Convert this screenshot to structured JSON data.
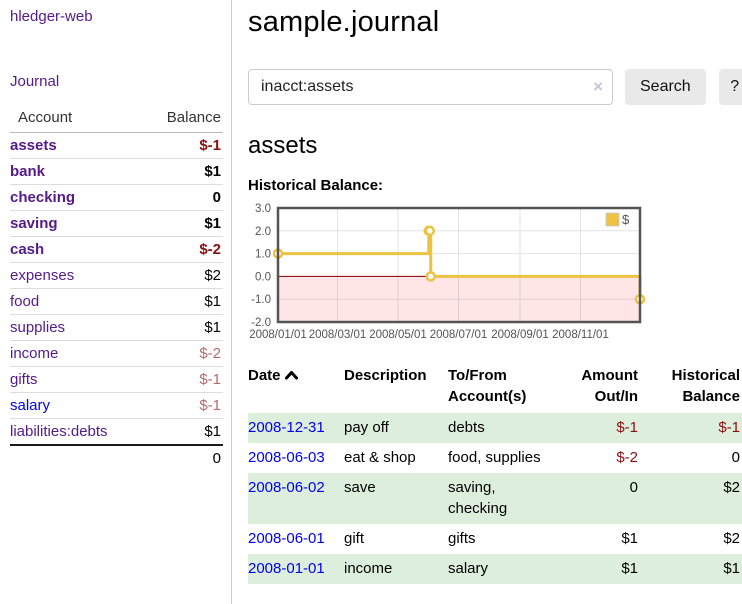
{
  "app": {
    "title": "hledger-web"
  },
  "sidebar": {
    "journal_link": "Journal",
    "accounts_table": {
      "col_account": "Account",
      "col_balance": "Balance",
      "rows": [
        {
          "name": "assets",
          "balance": "$-1"
        },
        {
          "name": "bank",
          "balance": "$1"
        },
        {
          "name": "checking",
          "balance": "0"
        },
        {
          "name": "saving",
          "balance": "$1"
        },
        {
          "name": "cash",
          "balance": "$-2"
        },
        {
          "name": "expenses",
          "balance": "$2"
        },
        {
          "name": "food",
          "balance": "$1"
        },
        {
          "name": "supplies",
          "balance": "$1"
        },
        {
          "name": "income",
          "balance": "$-2"
        },
        {
          "name": "gifts",
          "balance": "$-1"
        },
        {
          "name": "salary",
          "balance": "$-1"
        },
        {
          "name": "liabilities:debts",
          "balance": "$1"
        }
      ],
      "total": "0"
    }
  },
  "main": {
    "title": "sample.journal",
    "search": {
      "query": "inacct:assets",
      "clear_icon": "×",
      "button_label": "Search",
      "help_label": "?"
    },
    "account_heading": "assets",
    "chart_label": "Historical Balance:"
  },
  "chart_data": {
    "type": "line",
    "title": "Historical Balance",
    "steps": true,
    "series": [
      {
        "name": "$",
        "color": "#edc240",
        "points": [
          {
            "date": "2008-01-01",
            "day": 0,
            "value": 1
          },
          {
            "date": "2008-06-01",
            "day": 152,
            "value": 2
          },
          {
            "date": "2008-06-02",
            "day": 153,
            "value": 2
          },
          {
            "date": "2008-06-03",
            "day": 154,
            "value": 0
          },
          {
            "date": "2008-12-31",
            "day": 365,
            "value": -1
          }
        ]
      }
    ],
    "ylim": [
      -2,
      3
    ],
    "xlim_days": [
      0,
      365
    ],
    "y_ticks": [
      {
        "label": "3.0",
        "value": 3
      },
      {
        "label": "2.0",
        "value": 2
      },
      {
        "label": "1.0",
        "value": 1
      },
      {
        "label": "0.0",
        "value": 0
      },
      {
        "label": "-1.0",
        "value": -1
      },
      {
        "label": "-2.0",
        "value": -2
      }
    ],
    "x_ticks": [
      {
        "label": "2008/01/01",
        "day": 0
      },
      {
        "label": "2008/03/01",
        "day": 60
      },
      {
        "label": "2008/05/01",
        "day": 121
      },
      {
        "label": "2008/07/01",
        "day": 182
      },
      {
        "label": "2008/09/01",
        "day": 244
      },
      {
        "label": "2008/11/01",
        "day": 305
      }
    ],
    "grid": true,
    "legend_position": "top-right",
    "colors": {
      "grid": "#e3e3e3",
      "plot_border": "#545454",
      "tick_text": "#545454",
      "negative_region_fill": "rgba(255,0,0,0.10)",
      "zero_line": "#8b0000",
      "marker_fill": "#ffffff",
      "legend_box_border": "#cccccc"
    }
  },
  "transactions": {
    "headers": {
      "date": "Date",
      "description": "Description",
      "accounts": "To/From Account(s)",
      "amount": "Amount Out/In",
      "balance": "Historical Balance"
    },
    "rows": [
      {
        "date": "2008-12-31",
        "description": "pay off",
        "accounts": "debts",
        "amount": "$-1",
        "balance": "$-1"
      },
      {
        "date": "2008-06-03",
        "description": "eat & shop",
        "accounts": "food, supplies",
        "amount": "$-2",
        "balance": "0"
      },
      {
        "date": "2008-06-02",
        "description": "save",
        "accounts": "saving, checking",
        "amount": "0",
        "balance": "$2"
      },
      {
        "date": "2008-06-01",
        "description": "gift",
        "accounts": "gifts",
        "amount": "$1",
        "balance": "$2"
      },
      {
        "date": "2008-01-01",
        "description": "income",
        "accounts": "salary",
        "amount": "$1",
        "balance": "$1"
      }
    ]
  }
}
